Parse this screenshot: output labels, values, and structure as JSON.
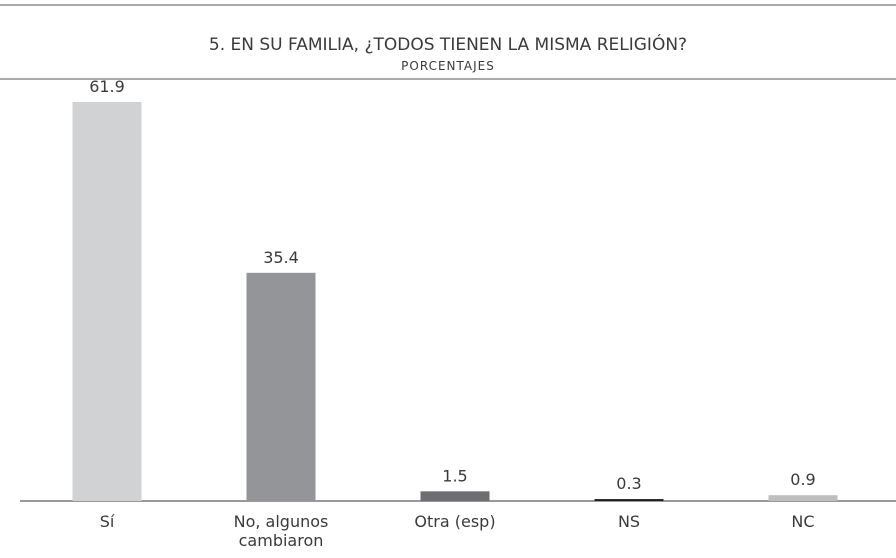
{
  "chart_data": {
    "type": "bar",
    "title": "5. EN SU FAMILIA, ¿TODOS TIENEN LA MISMA RELIGIÓN?",
    "subtitle": "PORCENTAJES",
    "categories": [
      "Sí",
      "No, algunos cambiaron",
      "Otra (esp)",
      "NS",
      "NC"
    ],
    "values": [
      61.9,
      35.4,
      1.5,
      0.3,
      0.9
    ],
    "colors": [
      "#d1d2d4",
      "#939598",
      "#6d6e71",
      "#231f20",
      "#bcbec0"
    ]
  }
}
